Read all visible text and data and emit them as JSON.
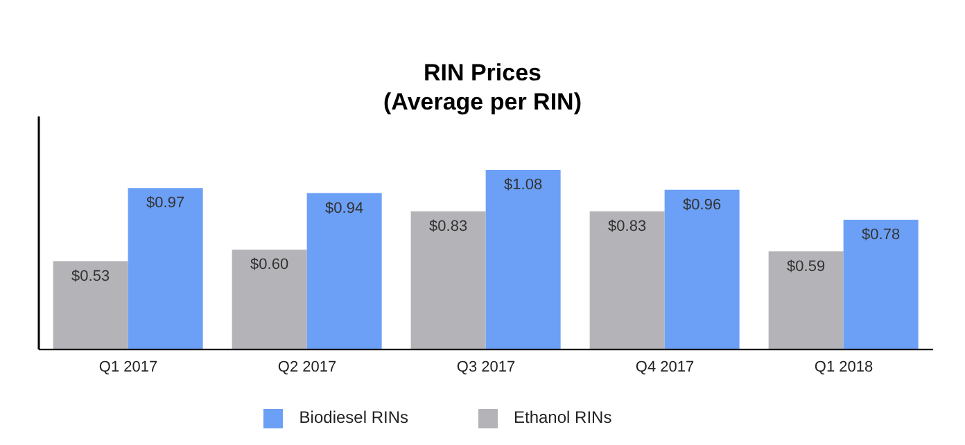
{
  "chart_data": {
    "type": "bar",
    "title": "RIN Prices",
    "subtitle": "(Average per RIN)",
    "categories": [
      "Q1 2017",
      "Q2 2017",
      "Q3 2017",
      "Q4 2017",
      "Q1 2018"
    ],
    "series": [
      {
        "name": "Ethanol RINs",
        "color": "#b4b4b8",
        "values": [
          0.53,
          0.6,
          0.83,
          0.83,
          0.59
        ],
        "value_labels": [
          "$0.53",
          "$0.60",
          "$0.83",
          "$0.83",
          "$0.59"
        ]
      },
      {
        "name": "Biodiesel RINs",
        "color": "#6ca0f6",
        "values": [
          0.97,
          0.94,
          1.08,
          0.96,
          0.78
        ],
        "value_labels": [
          "$0.97",
          "$0.94",
          "$1.08",
          "$0.96",
          "$0.78"
        ]
      }
    ],
    "ylim": [
      0,
      1.4
    ],
    "tick_labels": "x",
    "grid": false,
    "legend": "bottom"
  }
}
